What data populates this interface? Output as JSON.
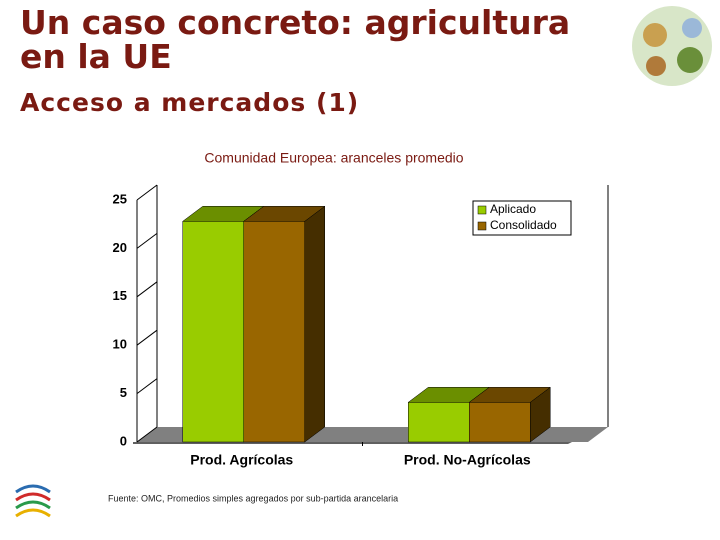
{
  "header": {
    "title_lines": [
      "Un caso concreto: agricultura",
      "en la UE"
    ],
    "subtitle": "Acceso a mercados (1)"
  },
  "chart_data": {
    "type": "bar3d",
    "title": "Comunidad Europea: aranceles promedio",
    "categories": [
      "Prod. Agrícolas",
      "Prod. No-Agrícolas"
    ],
    "series": [
      {
        "name": "Aplicado",
        "color": "#99cc00",
        "values": [
          22.8,
          4.1
        ]
      },
      {
        "name": "Consolidado",
        "color": "#996600",
        "values": [
          22.8,
          4.1
        ]
      }
    ],
    "ylim": [
      0,
      25
    ],
    "yticks": [
      0,
      5,
      10,
      15,
      20,
      25
    ],
    "legend": "top-right"
  },
  "footer": {
    "source": "Fuente: OMC, Promedios simples agregados por sub-partida arancelaria"
  }
}
